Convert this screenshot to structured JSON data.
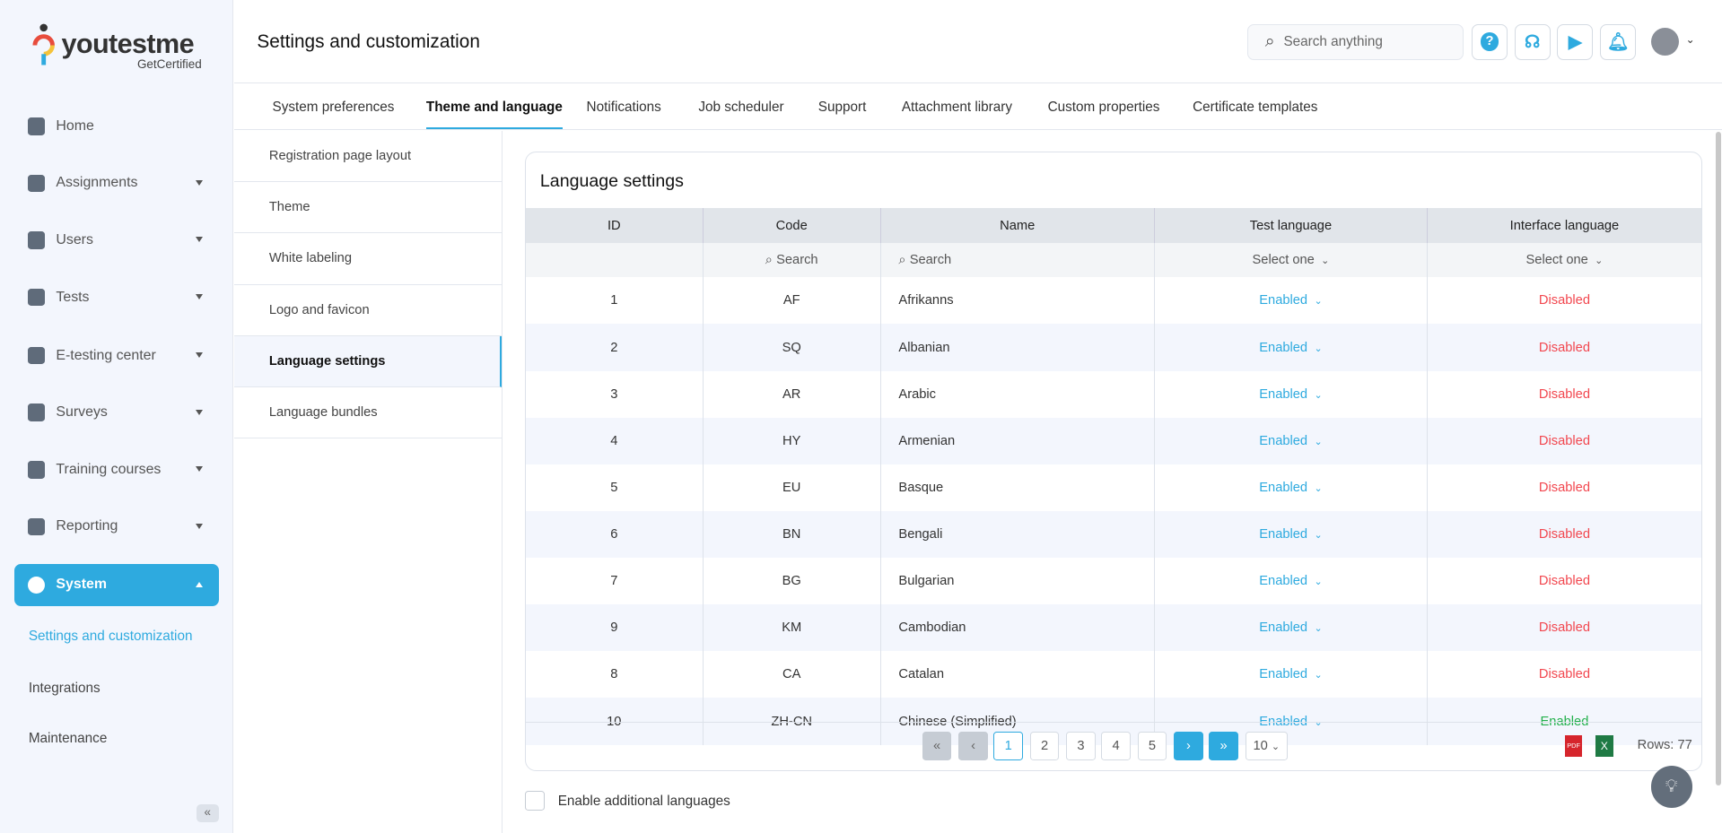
{
  "logo": {
    "word": "youtestme",
    "sub": "GetCertified"
  },
  "sidebar": {
    "items": [
      {
        "label": "Home",
        "icon": "home-icon",
        "caret": false
      },
      {
        "label": "Assignments",
        "icon": "assignments-icon",
        "caret": true
      },
      {
        "label": "Users",
        "icon": "users-icon",
        "caret": true
      },
      {
        "label": "Tests",
        "icon": "tests-icon",
        "caret": true
      },
      {
        "label": "E-testing center",
        "icon": "calendar-icon",
        "caret": true
      },
      {
        "label": "Surveys",
        "icon": "surveys-icon",
        "caret": true
      },
      {
        "label": "Training courses",
        "icon": "trophy-icon",
        "caret": true
      },
      {
        "label": "Reporting",
        "icon": "report-icon",
        "caret": true
      },
      {
        "label": "System",
        "icon": "gear-icon",
        "caret": true,
        "active": true
      }
    ],
    "subitems": [
      "Settings and customization",
      "Integrations",
      "Maintenance"
    ]
  },
  "header": {
    "title": "Settings and customization",
    "search_placeholder": "Search anything"
  },
  "tabs": [
    "System preferences",
    "Theme and language",
    "Notifications",
    "Job scheduler",
    "Support",
    "Attachment library",
    "Custom properties",
    "Certificate templates"
  ],
  "leftmenu": [
    "Registration page layout",
    "Theme",
    "White labeling",
    "Logo and favicon",
    "Language settings",
    "Language bundles"
  ],
  "card": {
    "title": "Language settings",
    "columns": [
      "ID",
      "Code",
      "Name",
      "Test language",
      "Interface language"
    ],
    "filters": {
      "search": "Search",
      "select": "Select one"
    },
    "rows": [
      [
        "1",
        "AF",
        "Afrikanns",
        "Enabled",
        "Disabled"
      ],
      [
        "2",
        "SQ",
        "Albanian",
        "Enabled",
        "Disabled"
      ],
      [
        "3",
        "AR",
        "Arabic",
        "Enabled",
        "Disabled"
      ],
      [
        "4",
        "HY",
        "Armenian",
        "Enabled",
        "Disabled"
      ],
      [
        "5",
        "EU",
        "Basque",
        "Enabled",
        "Disabled"
      ],
      [
        "6",
        "BN",
        "Bengali",
        "Enabled",
        "Disabled"
      ],
      [
        "7",
        "BG",
        "Bulgarian",
        "Enabled",
        "Disabled"
      ],
      [
        "9",
        "KM",
        "Cambodian",
        "Enabled",
        "Disabled"
      ],
      [
        "8",
        "CA",
        "Catalan",
        "Enabled",
        "Disabled"
      ],
      [
        "10",
        "ZH-CN",
        "Chinese (Simplified)",
        "Enabled",
        "Enabled"
      ]
    ],
    "pages": [
      "1",
      "2",
      "3",
      "4",
      "5"
    ],
    "page_size": "10",
    "rows_count": "Rows: 77"
  },
  "checkbox_label": "Enable additional languages",
  "colors": {
    "accent": "#2eaadf",
    "disabled": "#f2474f",
    "enabled": "#22b04b"
  }
}
